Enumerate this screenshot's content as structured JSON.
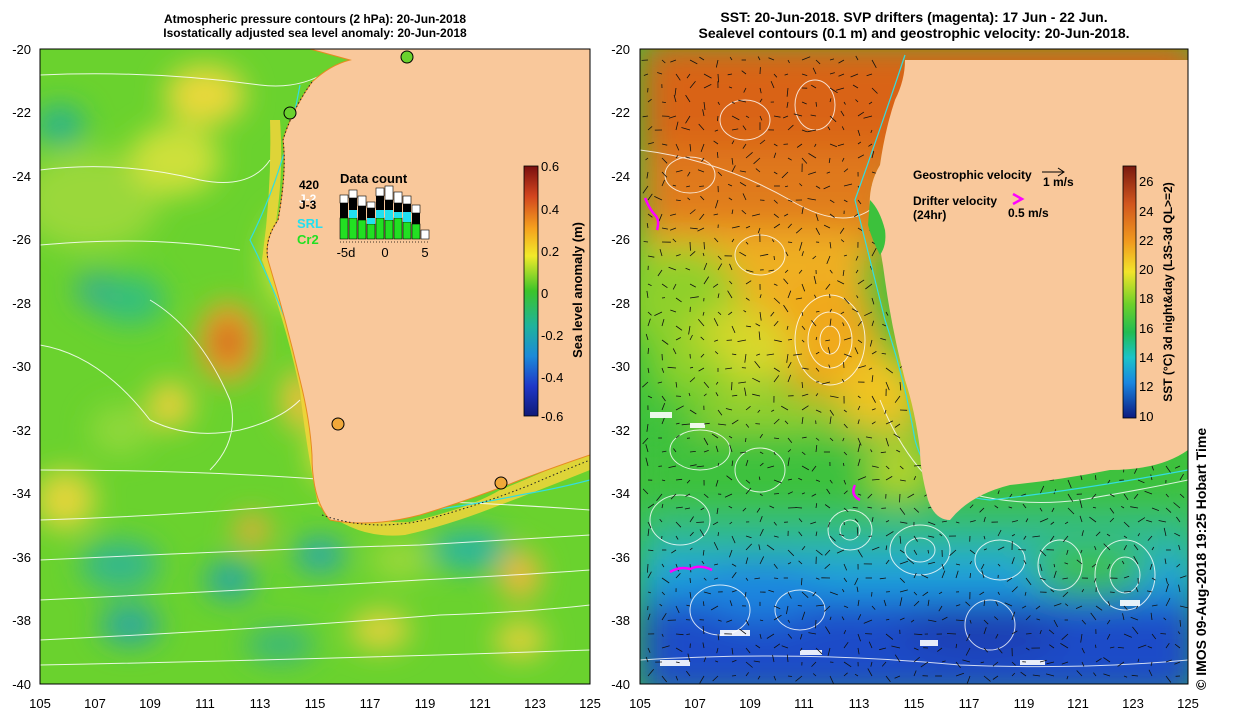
{
  "left_panel": {
    "title_line1": "Atmospheric pressure contours (2 hPa): 20-Jun-2018",
    "title_line2": "Isostatically adjusted sea level anomaly: 20-Jun-2018",
    "y_ticks": [
      "-20",
      "-22",
      "-24",
      "-26",
      "-28",
      "-30",
      "-32",
      "-34",
      "-36",
      "-38",
      "-40"
    ],
    "x_ticks": [
      "105",
      "107",
      "109",
      "111",
      "113",
      "115",
      "117",
      "119",
      "121",
      "123",
      "125"
    ],
    "colorbar": {
      "label": "Sea level anomaly (m)",
      "ticks": [
        "0.6",
        "0.4",
        "0.2",
        "0",
        "-0.2",
        "-0.4",
        "-0.6"
      ]
    },
    "data_count": {
      "title": "Data count",
      "legend": [
        "420",
        "J-2",
        "J-3",
        "SRL",
        "Cr2"
      ],
      "axis_ticks": [
        "-5d",
        "0",
        "5"
      ]
    }
  },
  "right_panel": {
    "title_line1": "SST: 20-Jun-2018. SVP drifters (magenta): 17 Jun - 22 Jun.",
    "title_line2": "Sealevel contours (0.1 m) and geostrophic velocity: 20-Jun-2018.",
    "y_ticks": [
      "-20",
      "-22",
      "-24",
      "-26",
      "-28",
      "-30",
      "-32",
      "-34",
      "-36",
      "-38",
      "-40"
    ],
    "x_ticks": [
      "105",
      "107",
      "109",
      "111",
      "113",
      "115",
      "117",
      "119",
      "121",
      "123",
      "125"
    ],
    "geostrophic_label": "Geostrophic velocity",
    "geostrophic_scale": "1 m/s",
    "drifter_label_1": "Drifter velocity",
    "drifter_label_2": "(24hr)",
    "drifter_scale": "0.5 m/s",
    "colorbar": {
      "label": "SST (°C) 3d night&day (L3S-3d QL>=2)",
      "ticks": [
        "26",
        "24",
        "22",
        "20",
        "18",
        "16",
        "14",
        "12",
        "10"
      ]
    }
  },
  "credit": "© IMOS 09-Aug-2018 19:25 Hobart Time",
  "colors": {
    "land": "#f9c89b",
    "drifter": "#ff00ff",
    "contour": "#ffffff"
  }
}
